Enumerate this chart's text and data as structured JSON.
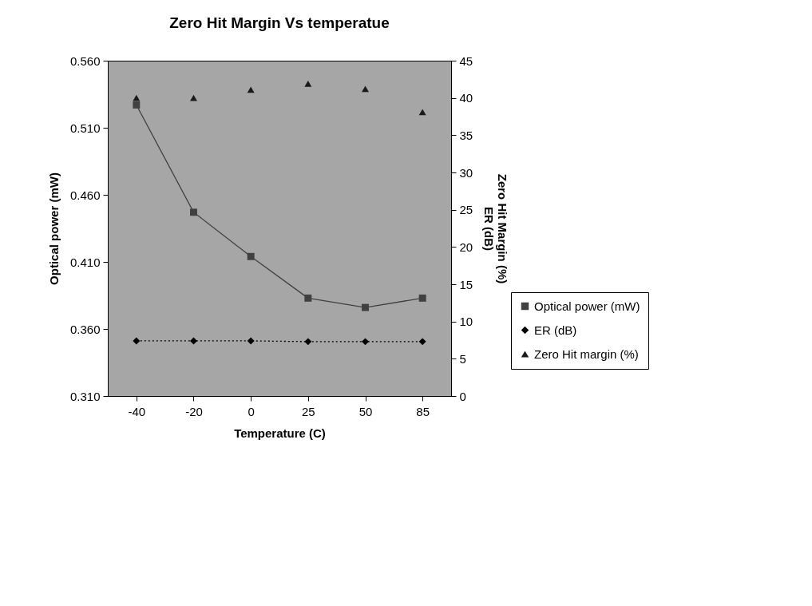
{
  "chart_data": {
    "type": "line",
    "title": "Zero Hit Margin Vs temperatue",
    "xlabel": "Temperature (C)",
    "ylabel": "Optical power (mW)",
    "y2label": "Zero Hit Margin (%)\nER (dB)",
    "categories": [
      "-40",
      "-20",
      "0",
      "25",
      "50",
      "85"
    ],
    "series": [
      {
        "name": "Optical power (mW)",
        "color": "#404040",
        "marker": "square",
        "line_style": "solid",
        "values": [
          0.527,
          0.447,
          0.414,
          0.383,
          0.376,
          0.383
        ]
      },
      {
        "name": "ER (dB)",
        "type": "line",
        "axis": "y2",
        "color": "#000000",
        "marker": "diamond",
        "line_style": "dotted",
        "values": [
          7.4,
          7.4,
          7.4,
          7.3,
          7.3,
          7.3
        ]
      },
      {
        "name": "Zero Hit margin (%)",
        "type": "scatter",
        "axis": "y2",
        "color": "#1a1a1a",
        "marker": "triangle",
        "values": [
          40,
          40,
          41.1,
          41.9,
          41.2,
          38.1
        ]
      }
    ],
    "ylim": [
      0.31,
      0.56
    ],
    "yticks": [
      {
        "value": 0.31,
        "label": "0.310"
      },
      {
        "value": 0.36,
        "label": "0.360"
      },
      {
        "value": 0.41,
        "label": "0.410"
      },
      {
        "value": 0.46,
        "label": "0.460"
      },
      {
        "value": 0.51,
        "label": "0.510"
      },
      {
        "value": 0.56,
        "label": "0.560"
      }
    ],
    "y2lim": [
      0,
      45
    ],
    "y2ticks": [
      0,
      5,
      10,
      15,
      20,
      25,
      30,
      35,
      40,
      45
    ],
    "grid": false,
    "legend": "right"
  }
}
